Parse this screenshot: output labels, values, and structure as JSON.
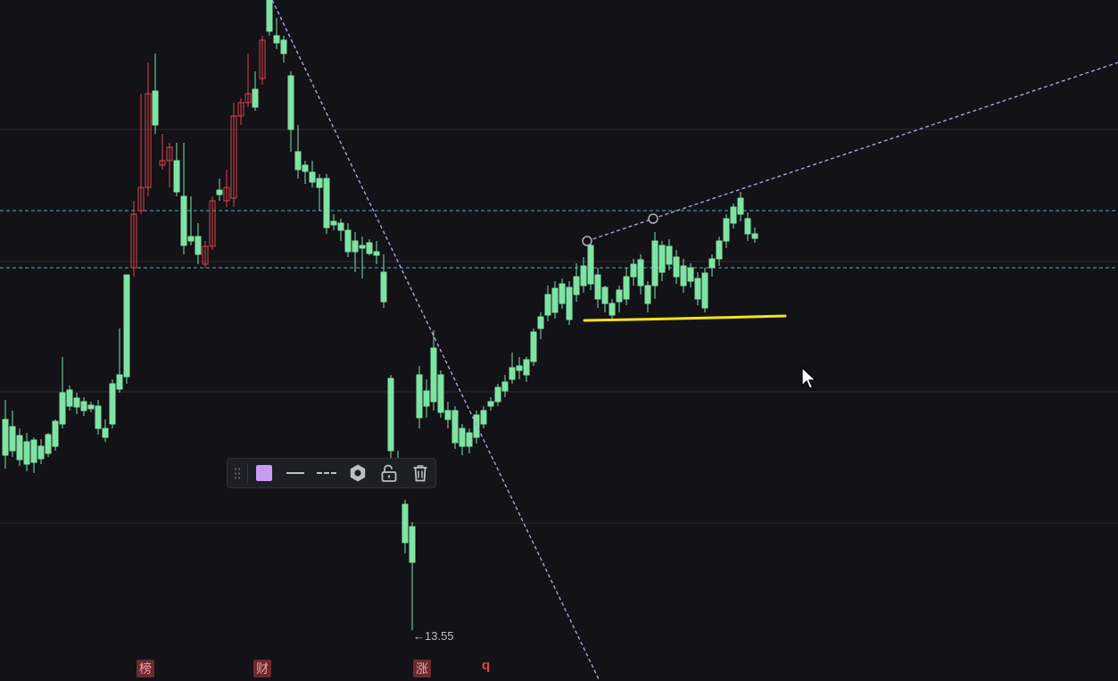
{
  "colors": {
    "background": "#121217",
    "up_candle": "#e0424a",
    "down_candle": "#7fe3a3",
    "trendline": "#b39ddb",
    "horizontal_level": "#4fd1d9",
    "grid": "#2a2a31",
    "highlight_line": "#f7e21a",
    "toolbar_swatch": "#c79bf2"
  },
  "chart": {
    "min_price_label": "←13.55",
    "markers": [
      {
        "text": "榜"
      },
      {
        "text": "财"
      },
      {
        "text": "涨"
      }
    ],
    "red_label": "q"
  },
  "toolbar": {
    "items": [
      {
        "name": "drag-handle-icon"
      },
      {
        "name": "color-swatch",
        "color": "#c79bf2"
      },
      {
        "name": "solid-line-style-icon"
      },
      {
        "name": "dashed-line-style-icon"
      },
      {
        "name": "settings-gear-icon"
      },
      {
        "name": "unlock-icon"
      },
      {
        "name": "trash-icon"
      }
    ]
  },
  "cursor": {
    "icon": "arrow-cursor-icon"
  }
}
